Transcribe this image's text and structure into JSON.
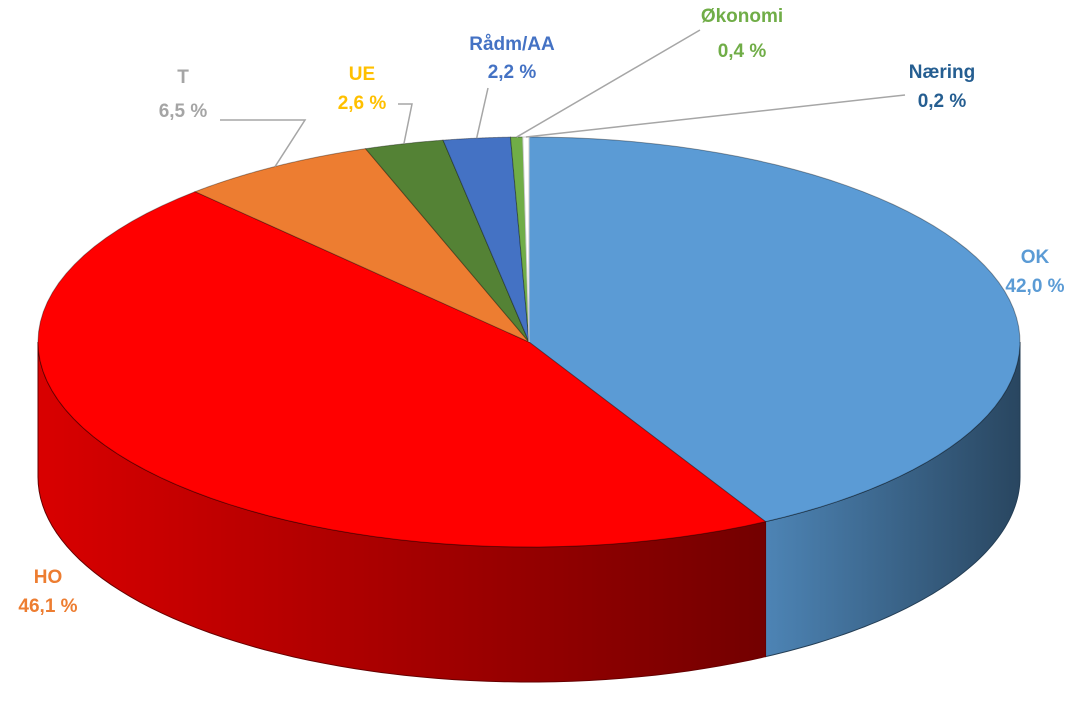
{
  "chart_data": {
    "type": "pie3d",
    "categories": [
      "OK",
      "HO",
      "T",
      "UE",
      "Rådm/AA",
      "Økonomi",
      "Næring"
    ],
    "values": [
      42.0,
      46.1,
      6.5,
      2.6,
      2.2,
      0.4,
      0.2
    ],
    "value_labels": [
      "42,0 %",
      "46,1 %",
      "6,5 %",
      "2,6 %",
      "2,2 %",
      "0,4 %",
      "0,2 %"
    ],
    "colors": [
      "#5b9bd5",
      "#ff0000",
      "#ed7d31",
      "#548235",
      "#4472c4",
      "#70ad47",
      "#ffffff"
    ],
    "label_colors": [
      "#5b9bd5",
      "#ed7d31",
      "#a5a5a5",
      "#ffc000",
      "#4472c4",
      "#70ad47",
      "#255e91"
    ]
  }
}
